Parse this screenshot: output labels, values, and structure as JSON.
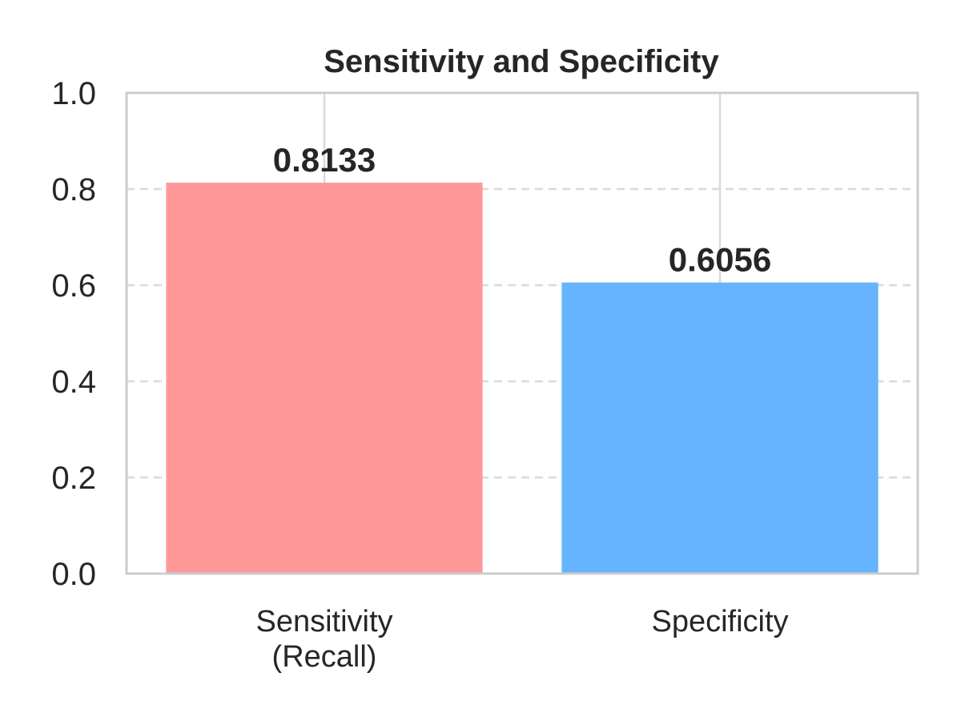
{
  "chart_data": {
    "type": "bar",
    "title": "Sensitivity and Specificity",
    "xlabel": "",
    "ylabel": "",
    "categories": [
      "Sensitivity\n(Recall)",
      "Specificity"
    ],
    "values": [
      0.8133,
      0.6056
    ],
    "value_labels": [
      "0.8133",
      "0.6056"
    ],
    "colors": [
      "#ff9999",
      "#66b3ff"
    ],
    "ylim": [
      0,
      1.0
    ],
    "yticks": [
      0.0,
      0.2,
      0.4,
      0.6,
      0.8,
      1.0
    ],
    "ytick_labels": [
      "0.0",
      "0.2",
      "0.4",
      "0.6",
      "0.8",
      "1.0"
    ],
    "grid": {
      "y": "dashed",
      "x": "solid"
    },
    "legend": "none"
  }
}
